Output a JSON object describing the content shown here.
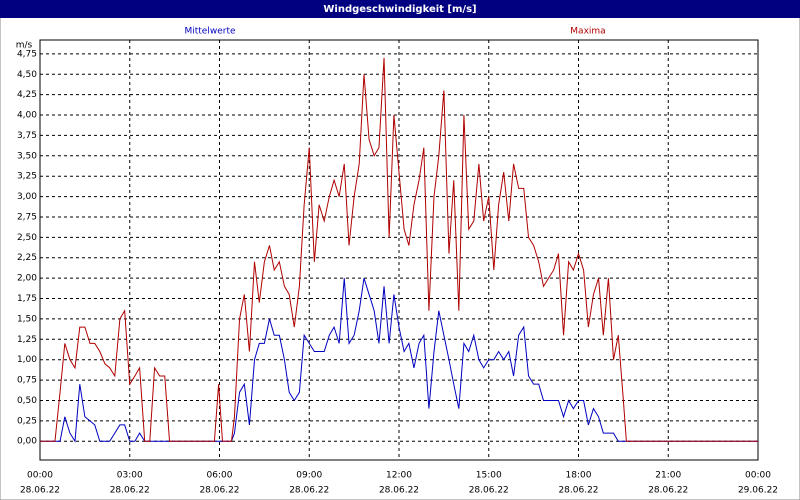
{
  "chart_data": {
    "type": "line",
    "title": "Windgeschwindigkeit [m/s]",
    "ylabel": "m/s",
    "x": [
      0,
      0.5,
      0.67,
      0.83,
      1,
      1.17,
      1.33,
      1.5,
      1.67,
      1.83,
      2,
      2.17,
      2.33,
      2.5,
      2.67,
      2.83,
      3,
      3.17,
      3.33,
      3.5,
      3.67,
      3.83,
      4,
      4.17,
      4.33,
      5.83,
      5.97,
      6.1,
      6.4,
      6.5,
      6.67,
      6.83,
      7,
      7.17,
      7.33,
      7.5,
      7.67,
      7.83,
      8,
      8.17,
      8.33,
      8.5,
      8.67,
      8.83,
      9,
      9.17,
      9.33,
      9.5,
      9.67,
      9.83,
      10,
      10.17,
      10.33,
      10.5,
      10.67,
      10.83,
      11,
      11.17,
      11.33,
      11.5,
      11.67,
      11.83,
      12,
      12.17,
      12.33,
      12.5,
      12.67,
      12.83,
      13,
      13.17,
      13.33,
      13.5,
      13.67,
      13.83,
      14,
      14.17,
      14.33,
      14.5,
      14.67,
      14.83,
      15,
      15.17,
      15.33,
      15.5,
      15.67,
      15.83,
      16,
      16.17,
      16.33,
      16.5,
      16.67,
      16.83,
      17,
      17.17,
      17.33,
      17.5,
      17.67,
      17.83,
      18,
      18.17,
      18.33,
      18.5,
      18.67,
      18.83,
      19,
      19.17,
      19.33,
      19.5,
      19.6,
      24
    ],
    "series": [
      {
        "name": "Mittelwerte",
        "color": "#0000c0",
        "values": [
          0,
          0,
          0,
          0.3,
          0.1,
          0,
          0.7,
          0.3,
          0.25,
          0.2,
          0,
          0,
          0,
          0.1,
          0.2,
          0.2,
          0,
          0,
          0.1,
          0,
          0,
          0,
          0,
          0,
          0,
          0,
          0,
          0,
          0,
          0.1,
          0.6,
          0.7,
          0.2,
          1.0,
          1.2,
          1.2,
          1.5,
          1.3,
          1.3,
          1.0,
          0.6,
          0.5,
          0.6,
          1.3,
          1.2,
          1.1,
          1.1,
          1.1,
          1.3,
          1.4,
          1.2,
          2.0,
          1.2,
          1.3,
          1.6,
          2.0,
          1.8,
          1.6,
          1.2,
          1.9,
          1.2,
          1.8,
          1.4,
          1.1,
          1.2,
          0.9,
          1.2,
          1.3,
          0.4,
          1.1,
          1.6,
          1.3,
          1.0,
          0.7,
          0.4,
          1.2,
          1.1,
          1.3,
          1.0,
          0.9,
          1.0,
          1.0,
          1.1,
          1.0,
          1.1,
          0.8,
          1.3,
          1.4,
          0.8,
          0.7,
          0.7,
          0.5,
          0.5,
          0.5,
          0.5,
          0.3,
          0.5,
          0.4,
          0.5,
          0.5,
          0.2,
          0.4,
          0.3,
          0.1,
          0.1,
          0.1,
          0,
          0,
          0,
          0
        ]
      },
      {
        "name": "Maxima",
        "color": "#b00000",
        "values": [
          0,
          0,
          0.6,
          1.2,
          1.0,
          0.9,
          1.4,
          1.4,
          1.2,
          1.2,
          1.1,
          0.95,
          0.9,
          0.8,
          1.5,
          1.6,
          0.7,
          0.8,
          0.9,
          0,
          0,
          0.9,
          0.8,
          0.8,
          0,
          0,
          0.7,
          0,
          0,
          0.3,
          1.5,
          1.8,
          1.1,
          2.2,
          1.7,
          2.2,
          2.4,
          2.1,
          2.2,
          1.9,
          1.8,
          1.4,
          1.9,
          2.9,
          3.6,
          2.2,
          2.9,
          2.7,
          3.0,
          3.2,
          3.0,
          3.4,
          2.4,
          3.0,
          3.4,
          4.5,
          3.7,
          3.5,
          3.6,
          4.7,
          2.5,
          4.0,
          3.3,
          2.6,
          2.4,
          2.9,
          3.2,
          3.6,
          1.6,
          3.0,
          3.5,
          4.3,
          2.3,
          3.2,
          1.6,
          4.0,
          2.6,
          2.7,
          3.4,
          2.7,
          3.0,
          2.1,
          2.9,
          3.3,
          2.7,
          3.4,
          3.1,
          3.1,
          2.5,
          2.4,
          2.2,
          1.9,
          2.0,
          2.1,
          2.3,
          1.3,
          2.2,
          2.1,
          2.3,
          2.1,
          1.4,
          1.8,
          2.0,
          1.3,
          2.0,
          1.0,
          1.3,
          0.5,
          0,
          0
        ]
      }
    ],
    "xlim": [
      0,
      24
    ],
    "xticks": [
      {
        "value": 0,
        "label": "00:00"
      },
      {
        "value": 3,
        "label": "03:00"
      },
      {
        "value": 6,
        "label": "06:00"
      },
      {
        "value": 9,
        "label": "09:00"
      },
      {
        "value": 12,
        "label": "12:00"
      },
      {
        "value": 15,
        "label": "15:00"
      },
      {
        "value": 18,
        "label": "18:00"
      },
      {
        "value": 21,
        "label": "21:00"
      },
      {
        "value": 24,
        "label": "00:00"
      }
    ],
    "xtick_dates": [
      "28.06.22",
      "28.06.22",
      "28.06.22",
      "28.06.22",
      "28.06.22",
      "28.06.22",
      "28.06.22",
      "28.06.22",
      "29.06.22"
    ],
    "ylim": [
      -0.23,
      4.92
    ],
    "yticks": [
      {
        "value": 0,
        "label": "0,00"
      },
      {
        "value": 0.25,
        "label": "0,25"
      },
      {
        "value": 0.5,
        "label": "0,50"
      },
      {
        "value": 0.75,
        "label": "0,75"
      },
      {
        "value": 1,
        "label": "1,00"
      },
      {
        "value": 1.25,
        "label": "1,25"
      },
      {
        "value": 1.5,
        "label": "1,50"
      },
      {
        "value": 1.75,
        "label": "1,75"
      },
      {
        "value": 2,
        "label": "2,00"
      },
      {
        "value": 2.25,
        "label": "2,25"
      },
      {
        "value": 2.5,
        "label": "2,50"
      },
      {
        "value": 2.75,
        "label": "2,75"
      },
      {
        "value": 3,
        "label": "3,00"
      },
      {
        "value": 3.25,
        "label": "3,25"
      },
      {
        "value": 3.5,
        "label": "3,50"
      },
      {
        "value": 3.75,
        "label": "3,75"
      },
      {
        "value": 4,
        "label": "4,00"
      },
      {
        "value": 4.25,
        "label": "4,25"
      },
      {
        "value": 4.5,
        "label": "4,50"
      },
      {
        "value": 4.75,
        "label": "4,75"
      }
    ],
    "grid": true
  }
}
